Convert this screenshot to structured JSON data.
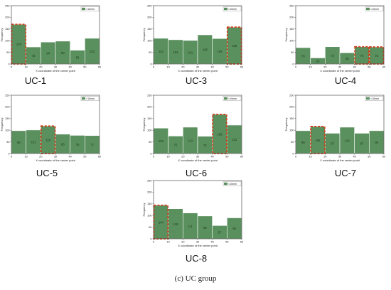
{
  "figure": {
    "caption": "(c) UC group"
  },
  "chart_data": [
    {
      "type": "bar",
      "name": "UC-1",
      "xlabel": "X coordinate of the center point",
      "ylabel": "Frequency",
      "legend": "<10mm",
      "legend_position": "top-right",
      "xlim": [
        0,
        60
      ],
      "ylim": [
        0,
        250
      ],
      "xticks": [
        0,
        10,
        20,
        30,
        40,
        50,
        60
      ],
      "yticks": [
        0,
        50,
        100,
        150,
        200,
        250
      ],
      "bins": [
        [
          0,
          10
        ],
        [
          10,
          20
        ],
        [
          20,
          30
        ],
        [
          30,
          40
        ],
        [
          40,
          50
        ],
        [
          50,
          60
        ]
      ],
      "values": [
        170,
        73,
        94,
        98,
        59,
        110
      ],
      "value_labels": [
        "170",
        "73",
        "94",
        "98",
        "59",
        "110"
      ],
      "highlighted_bins": [
        0
      ]
    },
    {
      "type": "bar",
      "name": "UC-3",
      "xlabel": "X coordinate of the center point",
      "ylabel": "Frequency",
      "legend": "<10mm",
      "legend_position": "top-right",
      "xlim": [
        0,
        60
      ],
      "ylim": [
        0,
        250
      ],
      "xticks": [
        0,
        10,
        20,
        30,
        40,
        50,
        60
      ],
      "yticks": [
        0,
        50,
        100,
        150,
        200,
        250
      ],
      "bins": [
        [
          0,
          10
        ],
        [
          10,
          20
        ],
        [
          20,
          30
        ],
        [
          30,
          40
        ],
        [
          40,
          50
        ],
        [
          50,
          60
        ]
      ],
      "values": [
        110,
        104,
        101,
        125,
        109,
        158
      ],
      "value_labels": [
        "110",
        "104",
        "101",
        "125",
        "109",
        "158"
      ],
      "highlighted_bins": [
        5
      ]
    },
    {
      "type": "bar",
      "name": "UC-4",
      "xlabel": "X coordinate of the center point",
      "ylabel": "Frequency",
      "legend": "<10mm",
      "legend_position": "top-right",
      "xlim": [
        0,
        60
      ],
      "ylim": [
        0,
        250
      ],
      "xticks": [
        0,
        10,
        20,
        30,
        40,
        50,
        60
      ],
      "yticks": [
        0,
        50,
        100,
        150,
        200,
        250
      ],
      "bins": [
        [
          0,
          10
        ],
        [
          10,
          20
        ],
        [
          20,
          30
        ],
        [
          30,
          40
        ],
        [
          40,
          50
        ],
        [
          50,
          60
        ]
      ],
      "values": [
        70,
        26,
        74,
        48,
        74,
        73
      ],
      "value_labels": [
        "70",
        "26",
        "74",
        "48",
        "74",
        "73"
      ],
      "highlighted_bins": [
        4,
        5
      ]
    },
    {
      "type": "bar",
      "name": "UC-5",
      "xlabel": "X coordinate of the center point",
      "ylabel": "Frequency",
      "legend": "<10mm",
      "legend_position": "top-right",
      "xlim": [
        0,
        60
      ],
      "ylim": [
        0,
        250
      ],
      "xticks": [
        0,
        10,
        20,
        30,
        40,
        50,
        60
      ],
      "yticks": [
        0,
        50,
        100,
        150,
        200,
        250
      ],
      "bins": [
        [
          0,
          10
        ],
        [
          10,
          20
        ],
        [
          20,
          30
        ],
        [
          30,
          40
        ],
        [
          40,
          50
        ],
        [
          50,
          60
        ]
      ],
      "values": [
        98,
        101,
        118,
        83,
        78,
        77
      ],
      "value_labels": [
        "98",
        "101",
        "118",
        "83",
        "78",
        "77"
      ],
      "highlighted_bins": [
        2
      ]
    },
    {
      "type": "bar",
      "name": "UC-6",
      "xlabel": "X coordinate of the center point",
      "ylabel": "Frequency",
      "legend": "<10mm",
      "legend_position": "top-right",
      "xlim": [
        0,
        60
      ],
      "ylim": [
        0,
        250
      ],
      "xticks": [
        0,
        10,
        20,
        30,
        40,
        50,
        60
      ],
      "yticks": [
        0,
        50,
        100,
        150,
        200,
        250
      ],
      "bins": [
        [
          0,
          10
        ],
        [
          10,
          20
        ],
        [
          20,
          30
        ],
        [
          30,
          40
        ],
        [
          40,
          50
        ],
        [
          50,
          60
        ]
      ],
      "values": [
        109,
        75,
        113,
        74,
        168,
        122
      ],
      "value_labels": [
        "109",
        "75",
        "113",
        "74",
        "168",
        "122"
      ],
      "highlighted_bins": [
        4
      ]
    },
    {
      "type": "bar",
      "name": "UC-7",
      "xlabel": "X coordinate of the center point",
      "ylabel": "Frequency",
      "legend": "<10mm",
      "legend_position": "top-right",
      "xlim": [
        0,
        60
      ],
      "ylim": [
        0,
        250
      ],
      "xticks": [
        0,
        10,
        20,
        30,
        40,
        50,
        60
      ],
      "yticks": [
        0,
        50,
        100,
        150,
        200,
        250
      ],
      "bins": [
        [
          0,
          10
        ],
        [
          10,
          20
        ],
        [
          20,
          30
        ],
        [
          30,
          40
        ],
        [
          40,
          50
        ],
        [
          50,
          60
        ]
      ],
      "values": [
        98,
        116,
        87,
        113,
        87,
        98
      ],
      "value_labels": [
        "98",
        "116",
        "87",
        "113",
        "87",
        "98"
      ],
      "highlighted_bins": [
        1
      ]
    },
    {
      "type": "bar",
      "name": "UC-8",
      "xlabel": "X coordinate of the center point",
      "ylabel": "Frequency",
      "legend": "<10mm",
      "legend_position": "top-right",
      "xlim": [
        0,
        60
      ],
      "ylim": [
        0,
        250
      ],
      "xticks": [
        0,
        10,
        20,
        30,
        40,
        50,
        60
      ],
      "yticks": [
        0,
        50,
        100,
        150,
        200,
        250
      ],
      "bins": [
        [
          0,
          10
        ],
        [
          10,
          20
        ],
        [
          20,
          30
        ],
        [
          30,
          40
        ],
        [
          40,
          50
        ],
        [
          50,
          60
        ]
      ],
      "values": [
        144,
        129,
        111,
        98,
        57,
        90
      ],
      "value_labels": [
        "144",
        "129",
        "111",
        "98",
        "57",
        "90"
      ],
      "highlighted_bins": [
        0
      ]
    }
  ],
  "colors": {
    "bar": "#5a8f5e",
    "bar_edge": "#ffffff",
    "highlight": "#d0421c",
    "axis": "#333333",
    "text": "#222222"
  }
}
